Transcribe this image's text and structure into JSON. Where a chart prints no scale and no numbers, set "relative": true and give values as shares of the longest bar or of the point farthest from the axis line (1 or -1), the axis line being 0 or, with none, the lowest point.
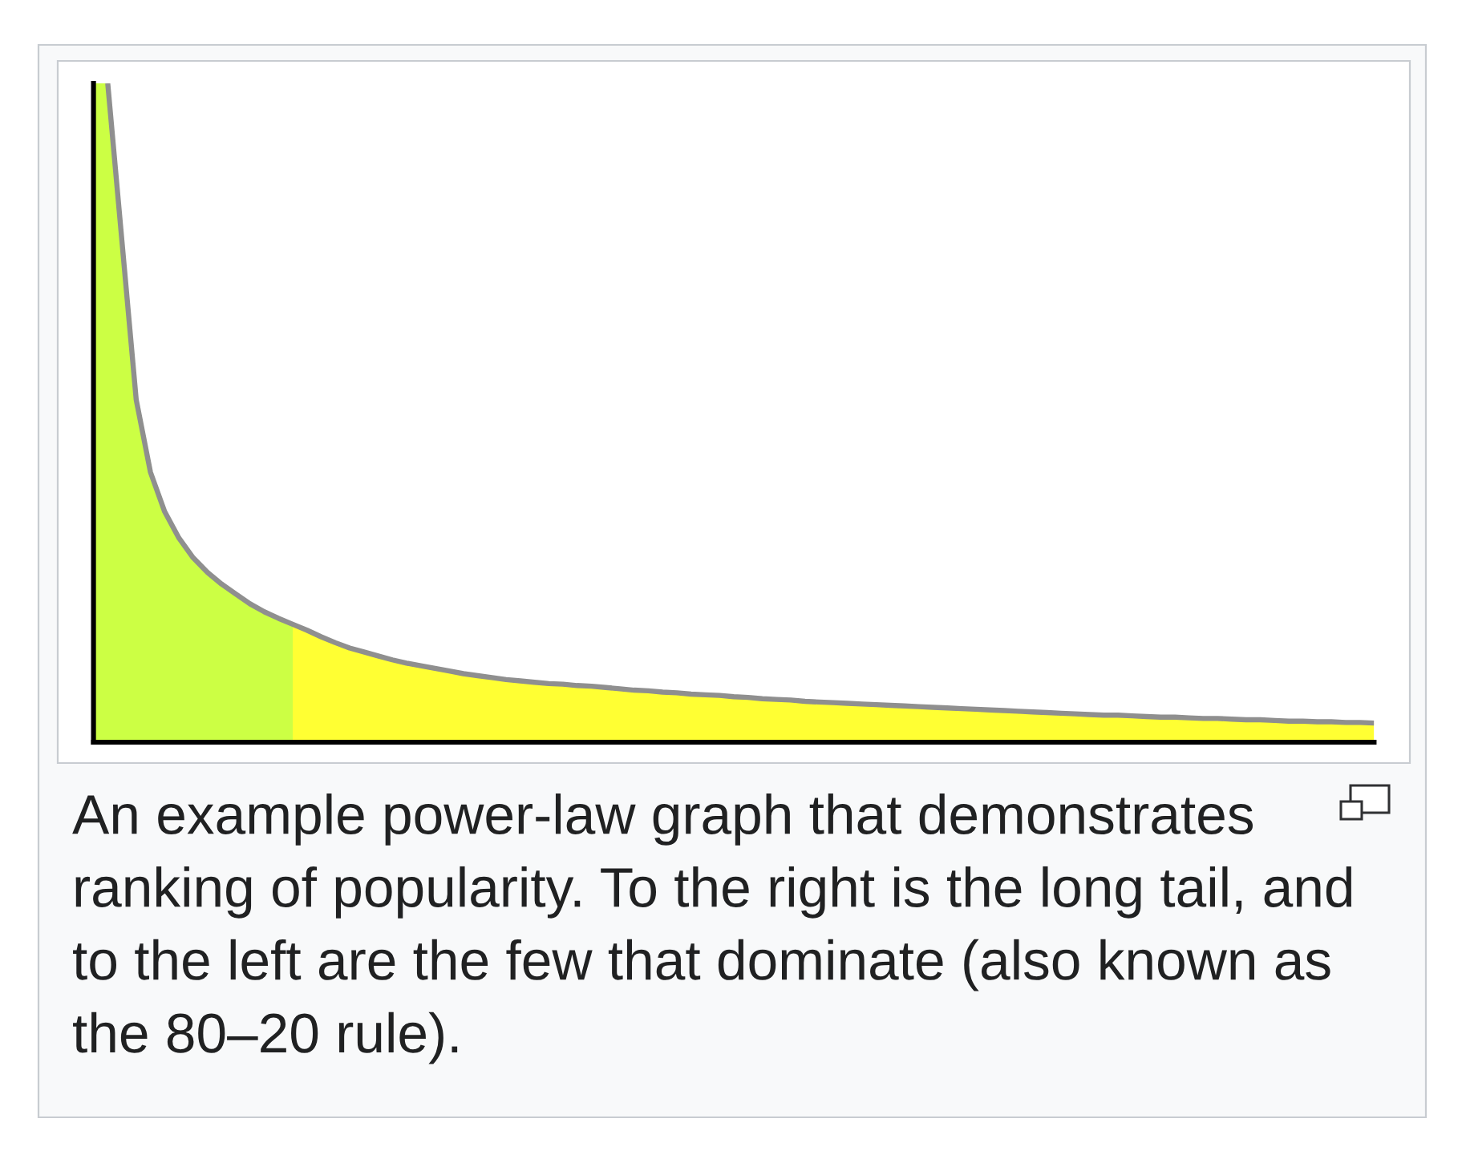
{
  "chart_data": {
    "type": "area",
    "relative": true,
    "categories": [
      null,
      null,
      null,
      null,
      null,
      null,
      null,
      null,
      null,
      null,
      null,
      null,
      null,
      null,
      null,
      null,
      null,
      null,
      null,
      null,
      null,
      null,
      null,
      null,
      null,
      null,
      null,
      null,
      null,
      null,
      null,
      null,
      null,
      null,
      null,
      null,
      null,
      null,
      null,
      null,
      null,
      null,
      null,
      null,
      null,
      null,
      null,
      null,
      null,
      null,
      null,
      null,
      null,
      null,
      null,
      null,
      null,
      null,
      null,
      null,
      null,
      null,
      null,
      null,
      null,
      null,
      null,
      null,
      null,
      null,
      null,
      null,
      null,
      null,
      null,
      null,
      null,
      null,
      null,
      null,
      null,
      null,
      null,
      null,
      null,
      null,
      null,
      null,
      null,
      null,
      null
    ],
    "series": [
      {
        "color": "#ccff44",
        "values": [
          1,
          1,
          0.76,
          0.52,
          0.41,
          0.35,
          0.31,
          0.28,
          0.258,
          0.24,
          0.225,
          0.21,
          0.198,
          0.188,
          0.179,
          null,
          null,
          null,
          null,
          null,
          null,
          null,
          null,
          null,
          null,
          null,
          null,
          null,
          null,
          null,
          null,
          null,
          null,
          null,
          null,
          null,
          null,
          null,
          null,
          null,
          null,
          null,
          null,
          null,
          null,
          null,
          null,
          null,
          null,
          null,
          null,
          null,
          null,
          null,
          null,
          null,
          null,
          null,
          null,
          null,
          null,
          null,
          null,
          null,
          null,
          null,
          null,
          null,
          null,
          null,
          null,
          null,
          null,
          null,
          null,
          null,
          null,
          null,
          null,
          null,
          null,
          null,
          null,
          null,
          null,
          null,
          null,
          null,
          null,
          null,
          null
        ]
      },
      {
        "color": "#ffff33",
        "values": [
          null,
          null,
          null,
          null,
          null,
          null,
          null,
          null,
          null,
          null,
          null,
          null,
          null,
          null,
          0.179,
          0.17,
          0.16,
          0.151,
          0.143,
          0.137,
          0.131,
          0.125,
          0.12,
          0.116,
          0.112,
          0.108,
          0.104,
          0.101,
          0.098,
          0.095,
          0.093,
          0.091,
          0.089,
          0.088,
          0.086,
          0.085,
          0.083,
          0.081,
          0.079,
          0.078,
          0.076,
          0.075,
          0.073,
          0.072,
          0.071,
          0.069,
          0.068,
          0.066,
          0.065,
          0.064,
          0.062,
          0.061,
          0.06,
          0.059,
          0.058,
          0.057,
          0.056,
          0.055,
          0.054,
          0.053,
          0.052,
          0.051,
          0.05,
          0.049,
          0.048,
          0.047,
          0.046,
          0.045,
          0.044,
          0.043,
          0.042,
          0.041,
          0.041,
          0.04,
          0.039,
          0.038,
          0.038,
          0.037,
          0.036,
          0.036,
          0.035,
          0.034,
          0.034,
          0.033,
          0.032,
          0.032,
          0.031,
          0.031,
          0.03,
          0.03,
          0.029
        ]
      },
      {
        "type": "line",
        "color": "#8f8f8f",
        "values": [
          null,
          1,
          0.76,
          0.52,
          0.41,
          0.35,
          0.31,
          0.28,
          0.258,
          0.24,
          0.225,
          0.21,
          0.198,
          0.188,
          0.179,
          0.17,
          0.16,
          0.151,
          0.143,
          0.137,
          0.131,
          0.125,
          0.12,
          0.116,
          0.112,
          0.108,
          0.104,
          0.101,
          0.098,
          0.095,
          0.093,
          0.091,
          0.089,
          0.088,
          0.086,
          0.085,
          0.083,
          0.081,
          0.079,
          0.078,
          0.076,
          0.075,
          0.073,
          0.072,
          0.071,
          0.069,
          0.068,
          0.066,
          0.065,
          0.064,
          0.062,
          0.061,
          0.06,
          0.059,
          0.058,
          0.057,
          0.056,
          0.055,
          0.054,
          0.053,
          0.052,
          0.051,
          0.05,
          0.049,
          0.048,
          0.047,
          0.046,
          0.045,
          0.044,
          0.043,
          0.042,
          0.041,
          0.041,
          0.04,
          0.039,
          0.038,
          0.038,
          0.037,
          0.036,
          0.036,
          0.035,
          0.034,
          0.034,
          0.033,
          0.032,
          0.032,
          0.031,
          0.031,
          0.03,
          0.03,
          0.029
        ]
      }
    ],
    "annotations": [
      "An example power-law graph that demonstrates ranking of popularity. To the right is the long tail, and to the left are the few that dominate (also known as the 80–20 rule)."
    ]
  }
}
